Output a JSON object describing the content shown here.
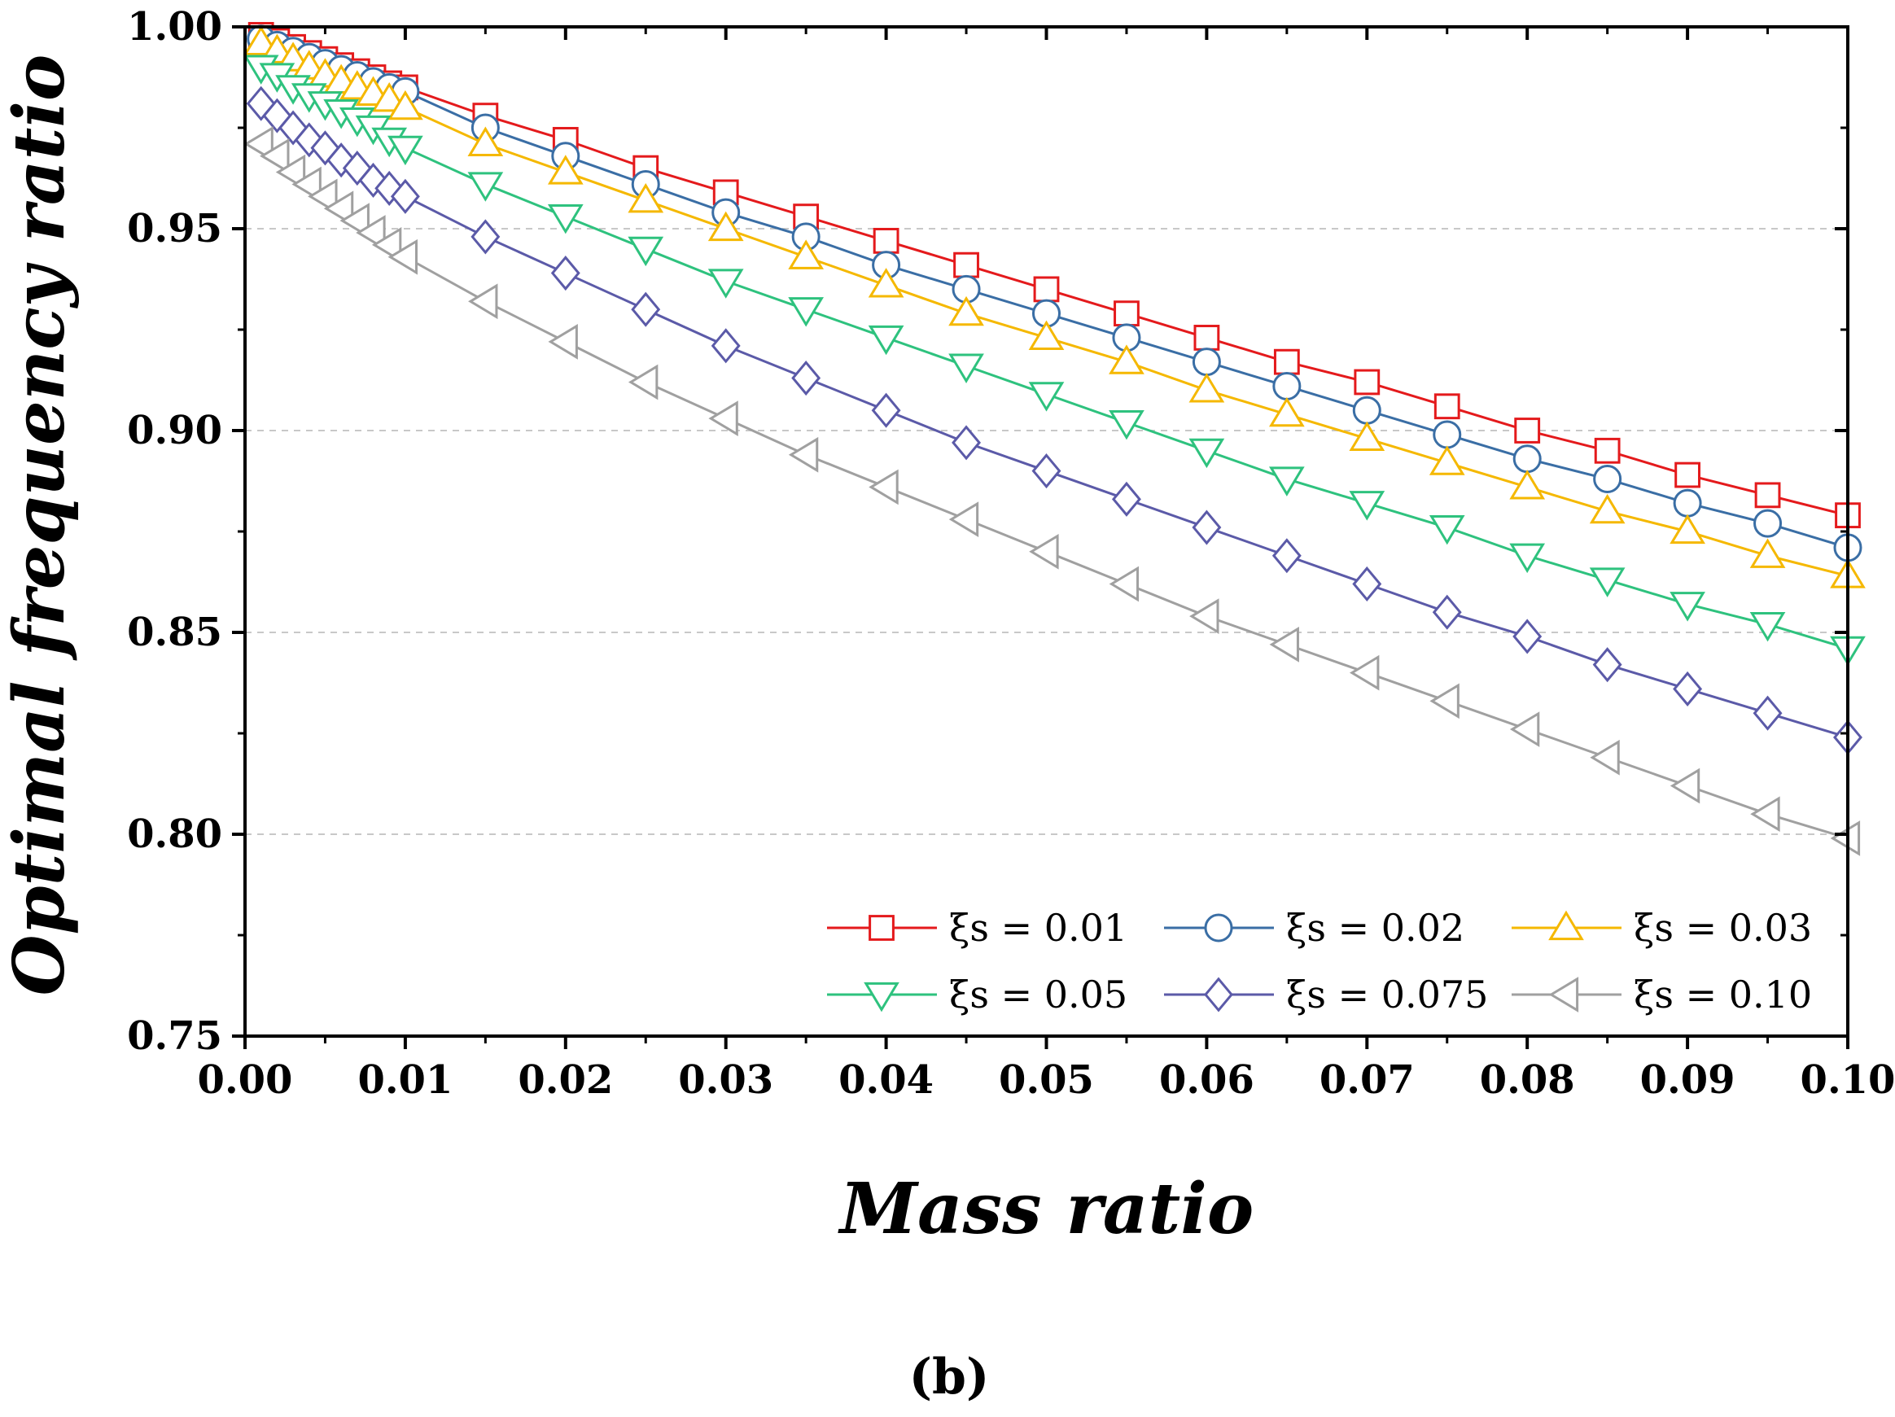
{
  "chart_data": {
    "type": "line",
    "title": "",
    "xlabel": "Mass ratio",
    "ylabel": "Optimal frequency ratio",
    "panel_label": "(b)",
    "xlim": [
      0.0,
      0.1
    ],
    "ylim": [
      0.75,
      1.0
    ],
    "x_ticks": [
      "0.00",
      "0.01",
      "0.02",
      "0.03",
      "0.04",
      "0.05",
      "0.06",
      "0.07",
      "0.08",
      "0.09",
      "0.10"
    ],
    "y_ticks": [
      "0.75",
      "0.80",
      "0.85",
      "0.90",
      "0.95",
      "1.00"
    ],
    "y_gridlines": [
      0.8,
      0.85,
      0.9,
      0.95
    ],
    "legend_position": "bottom-right",
    "x": [
      0.001,
      0.002,
      0.003,
      0.004,
      0.005,
      0.006,
      0.007,
      0.008,
      0.009,
      0.01,
      0.015,
      0.02,
      0.025,
      0.03,
      0.035,
      0.04,
      0.045,
      0.05,
      0.055,
      0.06,
      0.065,
      0.07,
      0.075,
      0.08,
      0.085,
      0.09,
      0.095,
      0.1
    ],
    "series": [
      {
        "name": "ξs = 0.01",
        "color": "#e41a1c",
        "marker": "square",
        "values": [
          0.998,
          0.9965,
          0.995,
          0.9935,
          0.992,
          0.9905,
          0.989,
          0.9875,
          0.986,
          0.985,
          0.978,
          0.972,
          0.965,
          0.959,
          0.953,
          0.947,
          0.941,
          0.935,
          0.929,
          0.923,
          0.917,
          0.912,
          0.906,
          0.9,
          0.895,
          0.889,
          0.884,
          0.879
        ]
      },
      {
        "name": "ξs = 0.02",
        "color": "#3a6ea5",
        "marker": "circle",
        "values": [
          0.997,
          0.9955,
          0.994,
          0.9925,
          0.991,
          0.9895,
          0.988,
          0.9865,
          0.985,
          0.984,
          0.975,
          0.968,
          0.961,
          0.954,
          0.948,
          0.941,
          0.935,
          0.929,
          0.923,
          0.917,
          0.911,
          0.905,
          0.899,
          0.893,
          0.888,
          0.882,
          0.877,
          0.871
        ]
      },
      {
        "name": "ξs = 0.03",
        "color": "#f5b800",
        "marker": "triangle-up",
        "values": [
          0.996,
          0.994,
          0.992,
          0.99,
          0.988,
          0.9865,
          0.985,
          0.9835,
          0.982,
          0.98,
          0.971,
          0.964,
          0.957,
          0.95,
          0.943,
          0.936,
          0.929,
          0.923,
          0.917,
          0.91,
          0.904,
          0.898,
          0.892,
          0.886,
          0.88,
          0.875,
          0.869,
          0.864
        ]
      },
      {
        "name": "ξs = 0.05",
        "color": "#2ec27e",
        "marker": "triangle-down",
        "values": [
          0.99,
          0.988,
          0.985,
          0.983,
          0.981,
          0.979,
          0.977,
          0.975,
          0.972,
          0.97,
          0.961,
          0.953,
          0.945,
          0.937,
          0.93,
          0.923,
          0.916,
          0.909,
          0.902,
          0.895,
          0.888,
          0.882,
          0.876,
          0.869,
          0.863,
          0.857,
          0.852,
          0.846
        ]
      },
      {
        "name": "ξs = 0.075",
        "color": "#5b5aa8",
        "marker": "diamond",
        "values": [
          0.981,
          0.978,
          0.975,
          0.972,
          0.97,
          0.967,
          0.965,
          0.962,
          0.96,
          0.958,
          0.948,
          0.939,
          0.93,
          0.921,
          0.913,
          0.905,
          0.897,
          0.89,
          0.883,
          0.876,
          0.869,
          0.862,
          0.855,
          0.849,
          0.842,
          0.836,
          0.83,
          0.824
        ]
      },
      {
        "name": "ξs = 0.10",
        "color": "#a0a0a0",
        "marker": "triangle-left",
        "values": [
          0.971,
          0.968,
          0.964,
          0.961,
          0.958,
          0.955,
          0.952,
          0.949,
          0.946,
          0.943,
          0.932,
          0.922,
          0.912,
          0.903,
          0.894,
          0.886,
          0.878,
          0.87,
          0.862,
          0.854,
          0.847,
          0.84,
          0.833,
          0.826,
          0.819,
          0.812,
          0.805,
          0.799
        ]
      }
    ]
  }
}
